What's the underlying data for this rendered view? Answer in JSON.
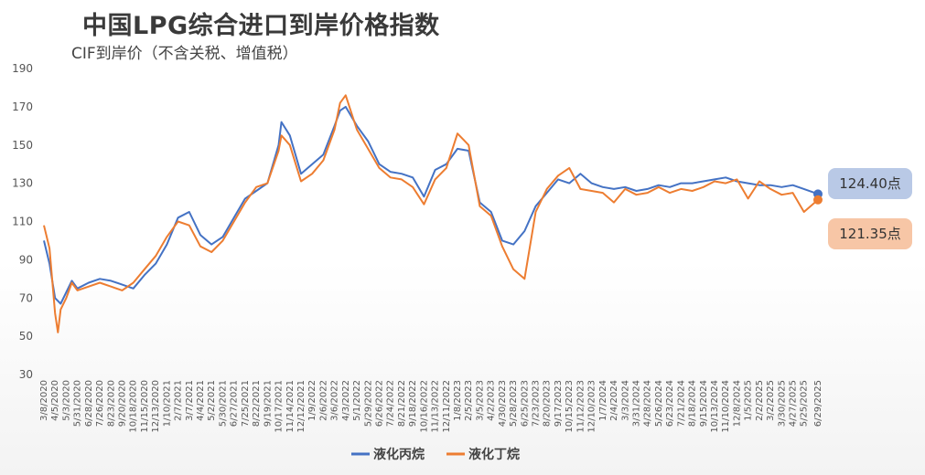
{
  "title": "中国LPG综合进口到岸价格指数",
  "subtitle": "CIF到岸价（不含关税、增值税）",
  "colors": {
    "propane": "#4472c4",
    "butane": "#ed7d31"
  },
  "badges": {
    "propane": "124.40点",
    "butane": "121.35点"
  },
  "chart_data": {
    "type": "line",
    "title": "中国LPG综合进口到岸价格指数",
    "subtitle": "CIF到岸价（不含关税、增值税）",
    "xlabel": "",
    "ylabel": "",
    "ylim": [
      30,
      190
    ],
    "yticks": [
      30,
      50,
      70,
      90,
      110,
      130,
      150,
      170,
      190
    ],
    "xlim": [
      "2020-03-08",
      "2025-06-29"
    ],
    "grid": false,
    "legend": "bottom",
    "x_ticks": [
      "3/8/2020",
      "4/5/2020",
      "5/3/2020",
      "5/31/2020",
      "6/28/2020",
      "7/26/2020",
      "8/23/2020",
      "9/20/2020",
      "10/18/2020",
      "11/15/2020",
      "12/13/2020",
      "1/10/2021",
      "2/7/2021",
      "3/7/2021",
      "4/4/2021",
      "5/2/2021",
      "5/30/2021",
      "6/27/2021",
      "7/25/2021",
      "8/22/2021",
      "9/19/2021",
      "10/17/2021",
      "11/14/2021",
      "12/12/2021",
      "1/9/2022",
      "2/6/2022",
      "3/6/2022",
      "4/3/2022",
      "5/1/2022",
      "5/29/2022",
      "6/26/2022",
      "7/24/2022",
      "8/21/2022",
      "9/18/2022",
      "10/16/2022",
      "11/13/2022",
      "12/11/2022",
      "1/8/2023",
      "2/5/2023",
      "3/5/2023",
      "4/2/2023",
      "4/30/2023",
      "5/28/2023",
      "6/25/2023",
      "7/23/2023",
      "8/20/2023",
      "9/17/2023",
      "10/15/2023",
      "11/12/2023",
      "12/10/2023",
      "1/7/2024",
      "2/4/2024",
      "3/3/2024",
      "3/31/2024",
      "4/28/2024",
      "5/26/2024",
      "6/23/2024",
      "7/21/2024",
      "8/18/2024",
      "9/15/2024",
      "10/13/2024",
      "11/10/2024",
      "12/8/2024",
      "1/5/2025",
      "2/2/2025",
      "3/2/2025",
      "3/30/2025",
      "4/27/2025",
      "5/25/2025",
      "6/29/2025"
    ],
    "series": [
      {
        "name": "液化丙烷",
        "color": "#4472c4",
        "points": [
          [
            "2020-03-08",
            100
          ],
          [
            "2020-03-22",
            88
          ],
          [
            "2020-04-05",
            70
          ],
          [
            "2020-04-19",
            67
          ],
          [
            "2020-05-03",
            73
          ],
          [
            "2020-05-17",
            79
          ],
          [
            "2020-05-31",
            75
          ],
          [
            "2020-06-28",
            78
          ],
          [
            "2020-07-26",
            80
          ],
          [
            "2020-08-23",
            79
          ],
          [
            "2020-09-20",
            77
          ],
          [
            "2020-10-18",
            75
          ],
          [
            "2020-11-15",
            82
          ],
          [
            "2020-12-13",
            88
          ],
          [
            "2021-01-10",
            98
          ],
          [
            "2021-02-07",
            112
          ],
          [
            "2021-03-07",
            115
          ],
          [
            "2021-04-04",
            103
          ],
          [
            "2021-05-02",
            98
          ],
          [
            "2021-05-30",
            102
          ],
          [
            "2021-06-27",
            112
          ],
          [
            "2021-07-25",
            122
          ],
          [
            "2021-08-22",
            126
          ],
          [
            "2021-09-19",
            130
          ],
          [
            "2021-10-17",
            150
          ],
          [
            "2021-10-24",
            162
          ],
          [
            "2021-11-14",
            155
          ],
          [
            "2021-12-12",
            135
          ],
          [
            "2022-01-09",
            140
          ],
          [
            "2022-02-06",
            145
          ],
          [
            "2022-03-06",
            160
          ],
          [
            "2022-03-20",
            168
          ],
          [
            "2022-04-03",
            170
          ],
          [
            "2022-05-01",
            160
          ],
          [
            "2022-05-29",
            152
          ],
          [
            "2022-06-26",
            140
          ],
          [
            "2022-07-24",
            136
          ],
          [
            "2022-08-21",
            135
          ],
          [
            "2022-09-18",
            133
          ],
          [
            "2022-10-16",
            123
          ],
          [
            "2022-11-13",
            137
          ],
          [
            "2022-12-11",
            140
          ],
          [
            "2023-01-08",
            148
          ],
          [
            "2023-02-05",
            147
          ],
          [
            "2023-03-05",
            120
          ],
          [
            "2023-04-02",
            115
          ],
          [
            "2023-04-30",
            100
          ],
          [
            "2023-05-28",
            98
          ],
          [
            "2023-06-25",
            105
          ],
          [
            "2023-07-23",
            118
          ],
          [
            "2023-08-20",
            125
          ],
          [
            "2023-09-17",
            132
          ],
          [
            "2023-10-15",
            130
          ],
          [
            "2023-11-12",
            135
          ],
          [
            "2023-12-10",
            130
          ],
          [
            "2024-01-07",
            128
          ],
          [
            "2024-02-04",
            127
          ],
          [
            "2024-03-03",
            128
          ],
          [
            "2024-03-31",
            126
          ],
          [
            "2024-04-28",
            127
          ],
          [
            "2024-05-26",
            129
          ],
          [
            "2024-06-23",
            128
          ],
          [
            "2024-07-21",
            130
          ],
          [
            "2024-08-18",
            130
          ],
          [
            "2024-09-15",
            131
          ],
          [
            "2024-10-13",
            132
          ],
          [
            "2024-11-10",
            133
          ],
          [
            "2024-12-08",
            131
          ],
          [
            "2025-01-05",
            130
          ],
          [
            "2025-02-02",
            129
          ],
          [
            "2025-03-02",
            129
          ],
          [
            "2025-03-30",
            128
          ],
          [
            "2025-04-27",
            129
          ],
          [
            "2025-05-25",
            127
          ],
          [
            "2025-06-29",
            124.4
          ]
        ]
      },
      {
        "name": "液化丁烷",
        "color": "#ed7d31",
        "points": [
          [
            "2020-03-08",
            108
          ],
          [
            "2020-03-22",
            96
          ],
          [
            "2020-04-05",
            62
          ],
          [
            "2020-04-12",
            52
          ],
          [
            "2020-04-19",
            64
          ],
          [
            "2020-05-03",
            70
          ],
          [
            "2020-05-17",
            78
          ],
          [
            "2020-05-31",
            74
          ],
          [
            "2020-06-28",
            76
          ],
          [
            "2020-07-26",
            78
          ],
          [
            "2020-08-23",
            76
          ],
          [
            "2020-09-20",
            74
          ],
          [
            "2020-10-18",
            78
          ],
          [
            "2020-11-15",
            85
          ],
          [
            "2020-12-13",
            92
          ],
          [
            "2021-01-10",
            102
          ],
          [
            "2021-02-07",
            110
          ],
          [
            "2021-03-07",
            108
          ],
          [
            "2021-04-04",
            97
          ],
          [
            "2021-05-02",
            94
          ],
          [
            "2021-05-30",
            100
          ],
          [
            "2021-06-27",
            110
          ],
          [
            "2021-07-25",
            120
          ],
          [
            "2021-08-22",
            128
          ],
          [
            "2021-09-19",
            130
          ],
          [
            "2021-10-17",
            147
          ],
          [
            "2021-10-24",
            155
          ],
          [
            "2021-11-14",
            150
          ],
          [
            "2021-12-12",
            131
          ],
          [
            "2022-01-09",
            135
          ],
          [
            "2022-02-06",
            142
          ],
          [
            "2022-03-06",
            158
          ],
          [
            "2022-03-20",
            172
          ],
          [
            "2022-04-03",
            176
          ],
          [
            "2022-05-01",
            158
          ],
          [
            "2022-05-29",
            148
          ],
          [
            "2022-06-26",
            138
          ],
          [
            "2022-07-24",
            133
          ],
          [
            "2022-08-21",
            132
          ],
          [
            "2022-09-18",
            128
          ],
          [
            "2022-10-16",
            119
          ],
          [
            "2022-11-13",
            132
          ],
          [
            "2022-12-11",
            138
          ],
          [
            "2023-01-08",
            156
          ],
          [
            "2023-02-05",
            150
          ],
          [
            "2023-03-05",
            118
          ],
          [
            "2023-04-02",
            113
          ],
          [
            "2023-04-30",
            97
          ],
          [
            "2023-05-28",
            85
          ],
          [
            "2023-06-25",
            80
          ],
          [
            "2023-07-23",
            115
          ],
          [
            "2023-08-20",
            127
          ],
          [
            "2023-09-17",
            134
          ],
          [
            "2023-10-15",
            138
          ],
          [
            "2023-11-12",
            127
          ],
          [
            "2023-12-10",
            126
          ],
          [
            "2024-01-07",
            125
          ],
          [
            "2024-02-04",
            120
          ],
          [
            "2024-03-03",
            127
          ],
          [
            "2024-03-31",
            124
          ],
          [
            "2024-04-28",
            125
          ],
          [
            "2024-05-26",
            128
          ],
          [
            "2024-06-23",
            125
          ],
          [
            "2024-07-21",
            127
          ],
          [
            "2024-08-18",
            126
          ],
          [
            "2024-09-15",
            128
          ],
          [
            "2024-10-13",
            131
          ],
          [
            "2024-11-10",
            130
          ],
          [
            "2024-12-08",
            132
          ],
          [
            "2025-01-05",
            122
          ],
          [
            "2025-02-02",
            131
          ],
          [
            "2025-03-02",
            127
          ],
          [
            "2025-03-30",
            124
          ],
          [
            "2025-04-27",
            125
          ],
          [
            "2025-05-25",
            115
          ],
          [
            "2025-06-29",
            121.35
          ]
        ]
      }
    ]
  }
}
